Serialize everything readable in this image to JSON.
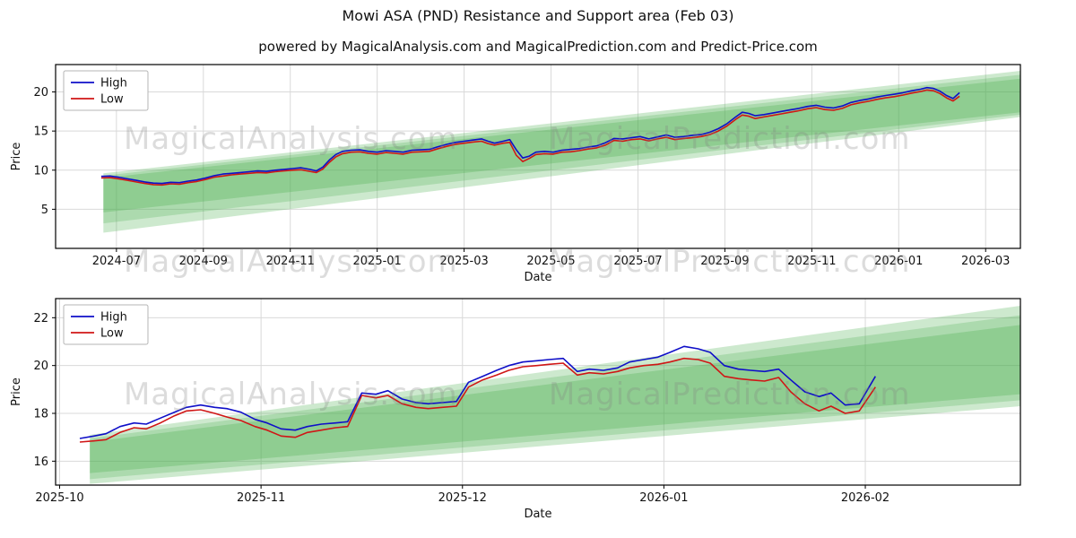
{
  "page": {
    "title": "Mowi ASA (PND) Resistance and Support area (Feb 03)",
    "subtitle": "powered by MagicalAnalysis.com and MagicalPrediction.com and Predict-Price.com"
  },
  "watermarks": {
    "analysis": "MagicalAnalysis.com",
    "prediction": "MagicalPrediction.com"
  },
  "chart_data": [
    {
      "name": "price-history-full",
      "type": "line",
      "title": "",
      "xlabel": "Date",
      "ylabel": "Price",
      "x_unit": "months since 2024-07",
      "xlim": [
        -1.4,
        20.8
      ],
      "ylim": [
        0,
        23.5
      ],
      "grid": true,
      "legend": [
        "High",
        "Low"
      ],
      "legend_position": "upper left",
      "high_color": "#0f0fc8",
      "low_color": "#d01616",
      "band_color": "#4caf50",
      "x_ticks": [
        {
          "v": 0,
          "label": "2024-07"
        },
        {
          "v": 2,
          "label": "2024-09"
        },
        {
          "v": 4,
          "label": "2024-11"
        },
        {
          "v": 6,
          "label": "2025-01"
        },
        {
          "v": 8,
          "label": "2025-03"
        },
        {
          "v": 10,
          "label": "2025-05"
        },
        {
          "v": 12,
          "label": "2025-07"
        },
        {
          "v": 14,
          "label": "2025-09"
        },
        {
          "v": 16,
          "label": "2025-11"
        },
        {
          "v": 18,
          "label": "2026-01"
        },
        {
          "v": 20,
          "label": "2026-03"
        }
      ],
      "y_ticks": [
        5,
        10,
        15,
        20
      ],
      "bands": [
        {
          "x0": -0.3,
          "t0": 9.6,
          "b0": 2.0,
          "x1": 20.8,
          "t1": 22.7,
          "b1": 16.8,
          "alpha": 0.28
        },
        {
          "x0": -0.3,
          "t0": 9.3,
          "b0": 3.2,
          "x1": 20.8,
          "t1": 22.2,
          "b1": 17.1,
          "alpha": 0.25
        },
        {
          "x0": -0.3,
          "t0": 9.0,
          "b0": 4.6,
          "x1": 20.8,
          "t1": 21.7,
          "b1": 17.4,
          "alpha": 0.3
        }
      ],
      "points": [
        [
          -0.35,
          9.2,
          9.0
        ],
        [
          -0.15,
          9.25,
          9.05
        ],
        [
          0.05,
          9.1,
          8.9
        ],
        [
          0.25,
          8.9,
          8.7
        ],
        [
          0.45,
          8.7,
          8.5
        ],
        [
          0.65,
          8.5,
          8.3
        ],
        [
          0.85,
          8.35,
          8.15
        ],
        [
          1.05,
          8.3,
          8.1
        ],
        [
          1.25,
          8.45,
          8.25
        ],
        [
          1.45,
          8.4,
          8.2
        ],
        [
          1.65,
          8.6,
          8.4
        ],
        [
          1.85,
          8.75,
          8.55
        ],
        [
          2.05,
          9.0,
          8.8
        ],
        [
          2.25,
          9.3,
          9.1
        ],
        [
          2.45,
          9.5,
          9.25
        ],
        [
          2.65,
          9.6,
          9.4
        ],
        [
          2.85,
          9.7,
          9.5
        ],
        [
          3.05,
          9.8,
          9.6
        ],
        [
          3.25,
          9.9,
          9.7
        ],
        [
          3.45,
          9.85,
          9.65
        ],
        [
          3.65,
          10.0,
          9.8
        ],
        [
          3.85,
          10.1,
          9.9
        ],
        [
          4.05,
          10.2,
          10.0
        ],
        [
          4.25,
          10.3,
          10.05
        ],
        [
          4.45,
          10.1,
          9.85
        ],
        [
          4.6,
          9.9,
          9.7
        ],
        [
          4.75,
          10.4,
          10.15
        ],
        [
          4.9,
          11.3,
          11.0
        ],
        [
          5.05,
          12.0,
          11.7
        ],
        [
          5.2,
          12.4,
          12.1
        ],
        [
          5.4,
          12.55,
          12.3
        ],
        [
          5.6,
          12.6,
          12.35
        ],
        [
          5.8,
          12.4,
          12.15
        ],
        [
          6.0,
          12.3,
          12.05
        ],
        [
          6.2,
          12.5,
          12.25
        ],
        [
          6.4,
          12.4,
          12.15
        ],
        [
          6.6,
          12.3,
          12.05
        ],
        [
          6.8,
          12.55,
          12.3
        ],
        [
          7.0,
          12.6,
          12.35
        ],
        [
          7.2,
          12.65,
          12.4
        ],
        [
          7.4,
          13.0,
          12.75
        ],
        [
          7.6,
          13.3,
          13.05
        ],
        [
          7.8,
          13.55,
          13.3
        ],
        [
          8.0,
          13.7,
          13.45
        ],
        [
          8.2,
          13.85,
          13.6
        ],
        [
          8.4,
          14.0,
          13.7
        ],
        [
          8.55,
          13.7,
          13.4
        ],
        [
          8.7,
          13.45,
          13.2
        ],
        [
          8.9,
          13.7,
          13.45
        ],
        [
          9.05,
          13.9,
          13.55
        ],
        [
          9.2,
          12.6,
          11.9
        ],
        [
          9.35,
          11.55,
          11.1
        ],
        [
          9.5,
          11.8,
          11.5
        ],
        [
          9.65,
          12.3,
          12.0
        ],
        [
          9.85,
          12.4,
          12.1
        ],
        [
          10.05,
          12.3,
          12.05
        ],
        [
          10.25,
          12.55,
          12.3
        ],
        [
          10.45,
          12.65,
          12.35
        ],
        [
          10.65,
          12.75,
          12.5
        ],
        [
          10.85,
          12.95,
          12.7
        ],
        [
          11.05,
          13.1,
          12.85
        ],
        [
          11.25,
          13.5,
          13.2
        ],
        [
          11.45,
          14.05,
          13.8
        ],
        [
          11.65,
          14.0,
          13.7
        ],
        [
          11.85,
          14.15,
          13.9
        ],
        [
          12.05,
          14.3,
          14.0
        ],
        [
          12.25,
          14.0,
          13.75
        ],
        [
          12.45,
          14.25,
          14.0
        ],
        [
          12.65,
          14.5,
          14.2
        ],
        [
          12.85,
          14.2,
          13.9
        ],
        [
          13.05,
          14.3,
          14.05
        ],
        [
          13.25,
          14.45,
          14.15
        ],
        [
          13.45,
          14.55,
          14.3
        ],
        [
          13.65,
          14.85,
          14.55
        ],
        [
          13.85,
          15.3,
          15.0
        ],
        [
          14.05,
          15.95,
          15.65
        ],
        [
          14.25,
          16.8,
          16.5
        ],
        [
          14.4,
          17.4,
          17.05
        ],
        [
          14.55,
          17.25,
          16.9
        ],
        [
          14.7,
          16.95,
          16.6
        ],
        [
          14.9,
          17.1,
          16.8
        ],
        [
          15.1,
          17.3,
          17.0
        ],
        [
          15.3,
          17.5,
          17.2
        ],
        [
          15.5,
          17.7,
          17.4
        ],
        [
          15.7,
          17.9,
          17.6
        ],
        [
          15.9,
          18.15,
          17.85
        ],
        [
          16.1,
          18.3,
          18.0
        ],
        [
          16.3,
          18.05,
          17.75
        ],
        [
          16.5,
          17.95,
          17.65
        ],
        [
          16.7,
          18.2,
          17.9
        ],
        [
          16.9,
          18.65,
          18.35
        ],
        [
          17.1,
          18.9,
          18.6
        ],
        [
          17.3,
          19.1,
          18.8
        ],
        [
          17.5,
          19.35,
          19.05
        ],
        [
          17.7,
          19.55,
          19.25
        ],
        [
          17.9,
          19.7,
          19.4
        ],
        [
          18.1,
          19.9,
          19.6
        ],
        [
          18.3,
          20.15,
          19.85
        ],
        [
          18.5,
          20.35,
          20.05
        ],
        [
          18.65,
          20.55,
          20.25
        ],
        [
          18.8,
          20.45,
          20.15
        ],
        [
          18.95,
          20.1,
          19.8
        ],
        [
          19.1,
          19.55,
          19.25
        ],
        [
          19.25,
          19.15,
          18.85
        ],
        [
          19.4,
          19.9,
          19.45
        ]
      ]
    },
    {
      "name": "price-history-recent",
      "type": "line",
      "title": "",
      "xlabel": "Date",
      "ylabel": "Price",
      "x_unit": "months since 2025-10",
      "xlim": [
        -0.02,
        4.77
      ],
      "ylim": [
        15.0,
        22.8
      ],
      "grid": true,
      "legend": [
        "High",
        "Low"
      ],
      "legend_position": "upper left",
      "high_color": "#0f0fc8",
      "low_color": "#d01616",
      "band_color": "#4caf50",
      "x_ticks": [
        {
          "v": 0,
          "label": "2025-10"
        },
        {
          "v": 1,
          "label": "2025-11"
        },
        {
          "v": 2,
          "label": "2025-12"
        },
        {
          "v": 3,
          "label": "2026-01"
        },
        {
          "v": 4,
          "label": "2026-02"
        }
      ],
      "y_ticks": [
        16,
        18,
        20,
        22
      ],
      "bands": [
        {
          "x0": 0.15,
          "t0": 17.1,
          "b0": 15.05,
          "x1": 4.77,
          "t1": 22.5,
          "b1": 18.3,
          "alpha": 0.28
        },
        {
          "x0": 0.15,
          "t0": 16.95,
          "b0": 15.25,
          "x1": 4.77,
          "t1": 22.1,
          "b1": 18.55,
          "alpha": 0.25
        },
        {
          "x0": 0.15,
          "t0": 16.8,
          "b0": 15.5,
          "x1": 4.77,
          "t1": 21.7,
          "b1": 18.8,
          "alpha": 0.3
        }
      ],
      "points": [
        [
          0.1,
          16.95,
          16.8
        ],
        [
          0.17,
          17.05,
          16.85
        ],
        [
          0.23,
          17.15,
          16.9
        ],
        [
          0.3,
          17.45,
          17.2
        ],
        [
          0.37,
          17.6,
          17.4
        ],
        [
          0.43,
          17.55,
          17.35
        ],
        [
          0.5,
          17.8,
          17.6
        ],
        [
          0.57,
          18.05,
          17.9
        ],
        [
          0.63,
          18.25,
          18.1
        ],
        [
          0.7,
          18.35,
          18.15
        ],
        [
          0.77,
          18.25,
          18.0
        ],
        [
          0.83,
          18.2,
          17.85
        ],
        [
          0.9,
          18.05,
          17.7
        ],
        [
          0.97,
          17.75,
          17.45
        ],
        [
          1.03,
          17.6,
          17.3
        ],
        [
          1.1,
          17.35,
          17.05
        ],
        [
          1.17,
          17.3,
          17.0
        ],
        [
          1.23,
          17.45,
          17.2
        ],
        [
          1.3,
          17.55,
          17.3
        ],
        [
          1.37,
          17.6,
          17.4
        ],
        [
          1.43,
          17.65,
          17.45
        ],
        [
          1.5,
          18.85,
          18.75
        ],
        [
          1.57,
          18.8,
          18.65
        ],
        [
          1.63,
          18.95,
          18.75
        ],
        [
          1.7,
          18.6,
          18.4
        ],
        [
          1.77,
          18.45,
          18.25
        ],
        [
          1.83,
          18.4,
          18.2
        ],
        [
          1.9,
          18.45,
          18.25
        ],
        [
          1.97,
          18.5,
          18.3
        ],
        [
          2.03,
          19.3,
          19.1
        ],
        [
          2.1,
          19.55,
          19.4
        ],
        [
          2.17,
          19.8,
          19.6
        ],
        [
          2.23,
          20.0,
          19.8
        ],
        [
          2.3,
          20.15,
          19.95
        ],
        [
          2.37,
          20.2,
          20.0
        ],
        [
          2.43,
          20.25,
          20.05
        ],
        [
          2.5,
          20.3,
          20.1
        ],
        [
          2.57,
          19.75,
          19.6
        ],
        [
          2.63,
          19.85,
          19.7
        ],
        [
          2.7,
          19.8,
          19.65
        ],
        [
          2.77,
          19.9,
          19.75
        ],
        [
          2.83,
          20.15,
          19.9
        ],
        [
          2.9,
          20.25,
          20.0
        ],
        [
          2.97,
          20.35,
          20.05
        ],
        [
          3.03,
          20.55,
          20.15
        ],
        [
          3.1,
          20.8,
          20.3
        ],
        [
          3.17,
          20.7,
          20.25
        ],
        [
          3.23,
          20.55,
          20.1
        ],
        [
          3.3,
          20.0,
          19.55
        ],
        [
          3.37,
          19.85,
          19.45
        ],
        [
          3.43,
          19.8,
          19.4
        ],
        [
          3.5,
          19.75,
          19.35
        ],
        [
          3.57,
          19.85,
          19.5
        ],
        [
          3.63,
          19.4,
          18.9
        ],
        [
          3.7,
          18.9,
          18.4
        ],
        [
          3.77,
          18.7,
          18.1
        ],
        [
          3.83,
          18.85,
          18.3
        ],
        [
          3.9,
          18.35,
          18.0
        ],
        [
          3.97,
          18.4,
          18.1
        ],
        [
          4.05,
          19.55,
          19.1
        ]
      ]
    }
  ]
}
